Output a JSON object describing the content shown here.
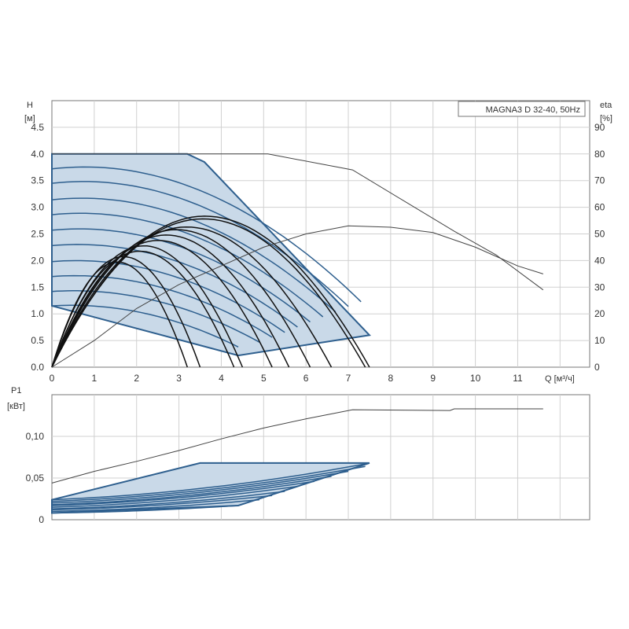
{
  "chart_data": [
    {
      "type": "line",
      "title": "MAGNA3 D 32-40, 50Hz",
      "xlabel": "Q [м³/ч]",
      "ylabel": "H",
      "ylabel_unit": "[м]",
      "y2label": "eta",
      "y2label_unit": "[%]",
      "xlim": [
        0,
        12.7
      ],
      "ylim": [
        0,
        5.0
      ],
      "y2lim": [
        0,
        100
      ],
      "grid": true,
      "x_ticks": [
        "0",
        "1",
        "2",
        "3",
        "4",
        "5",
        "6",
        "7",
        "8",
        "9",
        "10",
        "11"
      ],
      "y_ticks": [
        "0.0",
        "0.5",
        "1.0",
        "1.5",
        "2.0",
        "2.5",
        "3.0",
        "3.5",
        "4.0",
        "4.5"
      ],
      "y2_ticks": [
        "0",
        "10",
        "20",
        "30",
        "40",
        "50",
        "60",
        "70",
        "80",
        "90"
      ],
      "operating_area": {
        "fill": "#c9d9e8",
        "edge": "#2e5f8e",
        "boundary": [
          [
            0,
            1.15
          ],
          [
            0,
            4.0
          ],
          [
            3.2,
            4.0
          ],
          [
            3.6,
            3.85
          ],
          [
            7.5,
            0.6
          ],
          [
            4.4,
            0.22
          ],
          [
            0,
            1.15
          ]
        ]
      },
      "hq_curves": [
        {
          "H0": 3.72,
          "Qmax": 7.3
        },
        {
          "H0": 3.45,
          "Qmax": 7.0
        },
        {
          "H0": 3.14,
          "Qmax": 6.7
        },
        {
          "H0": 2.86,
          "Qmax": 6.4
        },
        {
          "H0": 2.57,
          "Qmax": 6.1
        },
        {
          "H0": 2.28,
          "Qmax": 5.8
        },
        {
          "H0": 1.98,
          "Qmax": 5.5
        },
        {
          "H0": 1.7,
          "Qmax": 5.2
        },
        {
          "H0": 1.42,
          "Qmax": 4.9
        },
        {
          "H0": 1.15,
          "Qmax": 4.4
        }
      ],
      "efficiency_curves": [
        {
          "Qend": 7.5,
          "peak": 2.8
        },
        {
          "Qend": 7.4,
          "peak": 2.75
        },
        {
          "Qend": 6.6,
          "peak": 2.6
        },
        {
          "Qend": 6.1,
          "peak": 2.55
        },
        {
          "Qend": 5.6,
          "peak": 2.45
        },
        {
          "Qend": 5.2,
          "peak": 2.35
        },
        {
          "Qend": 4.5,
          "peak": 2.25
        },
        {
          "Qend": 4.3,
          "peak": 2.15
        },
        {
          "Qend": 3.5,
          "peak": 2.05
        },
        {
          "Qend": 3.2,
          "peak": 1.95
        }
      ],
      "max_curve": {
        "x": [
          0,
          5.1,
          7.1,
          9.5,
          10.5,
          11.6
        ],
        "y": [
          4.0,
          4.0,
          3.7,
          2.55,
          2.1,
          1.45
        ]
      },
      "max_efficiency_curve": {
        "x": [
          0,
          1.0,
          2.0,
          3.0,
          4.0,
          5.0,
          6.0,
          7.0,
          8.0,
          9.0,
          10.0,
          11.0,
          11.6
        ],
        "y": [
          0,
          10,
          22,
          31,
          38,
          45,
          50,
          53,
          52.5,
          50.5,
          45,
          38,
          35
        ]
      }
    },
    {
      "type": "line",
      "ylabel": "P1",
      "ylabel_unit": "[кВт]",
      "xlim": [
        0,
        12.7
      ],
      "ylim": [
        0,
        0.15
      ],
      "grid": true,
      "y_ticks": [
        "0",
        "0,05",
        "0,10"
      ],
      "operating_area": {
        "fill": "#c9d9e8",
        "edge": "#2e5f8e",
        "boundary": [
          [
            0,
            0.008
          ],
          [
            0,
            0.024
          ],
          [
            3.5,
            0.068
          ],
          [
            7.5,
            0.068
          ],
          [
            4.4,
            0.017
          ],
          [
            0,
            0.008
          ]
        ]
      },
      "power_curves": [
        {
          "p0": 0.024,
          "Qend": 7.5,
          "pend": 0.068
        },
        {
          "p0": 0.022,
          "Qend": 7.4,
          "pend": 0.064
        },
        {
          "p0": 0.02,
          "Qend": 7.0,
          "pend": 0.058
        },
        {
          "p0": 0.018,
          "Qend": 6.6,
          "pend": 0.052
        },
        {
          "p0": 0.017,
          "Qend": 6.2,
          "pend": 0.046
        },
        {
          "p0": 0.015,
          "Qend": 5.8,
          "pend": 0.04
        },
        {
          "p0": 0.013,
          "Qend": 5.5,
          "pend": 0.034
        },
        {
          "p0": 0.012,
          "Qend": 5.2,
          "pend": 0.029
        },
        {
          "p0": 0.01,
          "Qend": 4.9,
          "pend": 0.024
        },
        {
          "p0": 0.008,
          "Qend": 4.4,
          "pend": 0.017
        }
      ],
      "max_power_curve": {
        "x": [
          0,
          1,
          2,
          3,
          4,
          5,
          6,
          7.1,
          9.4,
          9.5,
          11.6
        ],
        "y": [
          0.044,
          0.058,
          0.07,
          0.083,
          0.097,
          0.11,
          0.121,
          0.132,
          0.131,
          0.133,
          0.133
        ]
      }
    }
  ]
}
